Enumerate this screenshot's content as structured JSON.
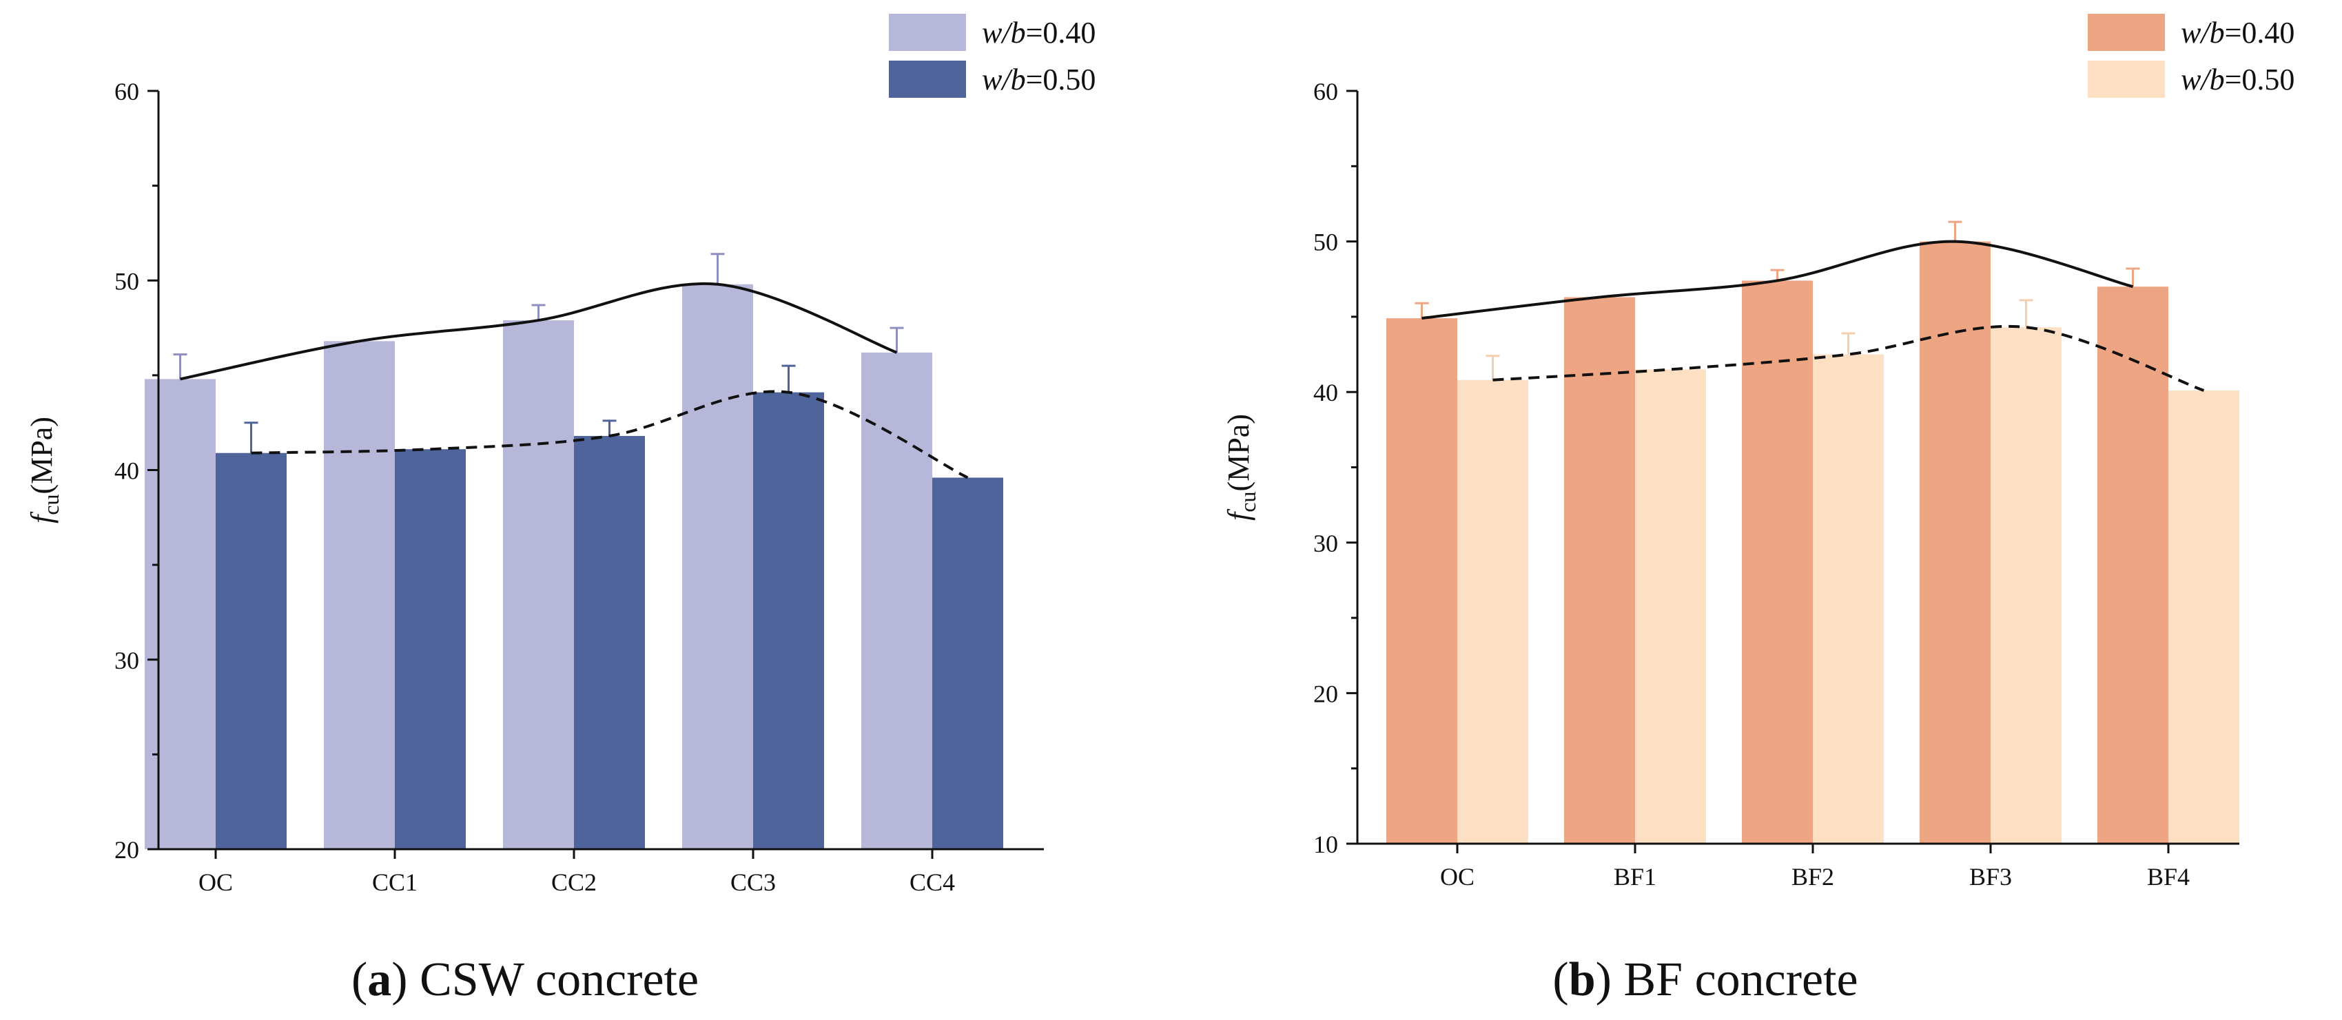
{
  "chart_data": [
    {
      "type": "bar",
      "panel_letter": "a",
      "caption_text": "CSW concrete",
      "ylabel_italic": "f",
      "ylabel_sub": "cu",
      "ylabel_unit": "(MPa)",
      "ylim": [
        20,
        60
      ],
      "yticks": [
        20,
        30,
        40,
        50,
        60
      ],
      "grid": false,
      "legend_position": "top-right",
      "categories": [
        "OC",
        "CC1",
        "CC2",
        "CC3",
        "CC4"
      ],
      "series": [
        {
          "name": "w/b=0.40",
          "legend_italic": "w/b",
          "legend_value": "=0.40",
          "color": "#b7b7d9",
          "error_color": "#8f8fc0",
          "values": [
            44.8,
            46.8,
            47.9,
            49.8,
            46.2
          ],
          "errors": [
            1.3,
            0.0,
            0.8,
            1.6,
            1.3
          ],
          "trend": "solid"
        },
        {
          "name": "w/b=0.50",
          "legend_italic": "w/b",
          "legend_value": "=0.50",
          "color": "#4f649a",
          "error_color": "#4f649a",
          "values": [
            40.9,
            41.1,
            41.8,
            44.1,
            39.6
          ],
          "errors": [
            1.6,
            0.0,
            0.8,
            1.4,
            0.0
          ],
          "trend": "dashed"
        }
      ]
    },
    {
      "type": "bar",
      "panel_letter": "b",
      "caption_text": "BF concrete",
      "ylabel_italic": "f",
      "ylabel_sub": "cu",
      "ylabel_unit": "(MPa)",
      "ylim": [
        10,
        60
      ],
      "yticks": [
        10,
        20,
        30,
        40,
        50,
        60
      ],
      "grid": false,
      "legend_position": "top-right",
      "categories": [
        "OC",
        "BF1",
        "BF2",
        "BF3",
        "BF4"
      ],
      "series": [
        {
          "name": "w/b=0.40",
          "legend_italic": "w/b",
          "legend_value": "=0.40",
          "color": "#eea584",
          "error_color": "#eea584",
          "values": [
            44.9,
            46.3,
            47.4,
            50.0,
            47.0
          ],
          "errors": [
            1.0,
            0.0,
            0.7,
            1.3,
            1.2
          ],
          "trend": "solid"
        },
        {
          "name": "w/b=0.50",
          "legend_italic": "w/b",
          "legend_value": "=0.50",
          "color": "#fde0c4",
          "error_color": "#f3cfae",
          "values": [
            40.8,
            41.5,
            42.5,
            44.3,
            40.1
          ],
          "errors": [
            1.6,
            0.0,
            1.4,
            1.8,
            0.0
          ],
          "trend": "dashed"
        }
      ]
    }
  ]
}
